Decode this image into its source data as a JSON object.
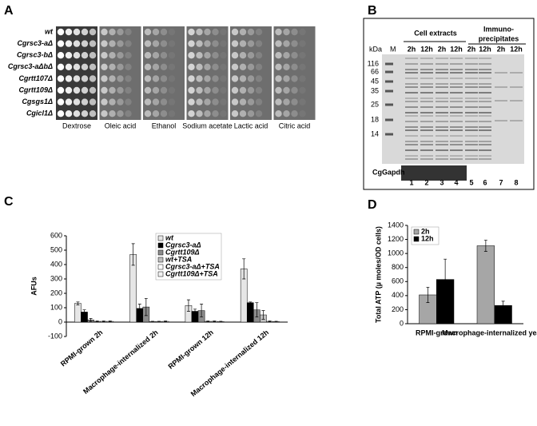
{
  "panels": {
    "a": "A",
    "b": "B",
    "c": "C",
    "d": "D"
  },
  "panel_a": {
    "strains": [
      "wt",
      "Cgrsc3-aΔ",
      "Cgrsc3-bΔ",
      "Cgrsc3-aΔbΔ",
      "Cgrtt107Δ",
      "Cgrtt109Δ",
      "Cgsgs1Δ",
      "Cgicl1Δ"
    ],
    "media": [
      "Dextrose",
      "Oleic acid",
      "Ethanol",
      "Sodium acetate",
      "Lactic acid",
      "Citric acid"
    ]
  },
  "panel_b": {
    "unit": "kDa",
    "marker": "M",
    "marker_sizes": [
      116,
      66,
      45,
      35,
      25,
      18,
      14
    ],
    "group_labels": [
      "Cell extracts",
      "Immuno-",
      "precipitates"
    ],
    "times": [
      "2h",
      "12h",
      "2h",
      "12h",
      "2h",
      "12h",
      "2h",
      "12h"
    ],
    "lanes": [
      1,
      2,
      3,
      4,
      5,
      6,
      7,
      8
    ],
    "loading_control": "CgGapdh"
  },
  "chart_data": [
    {
      "type": "bar",
      "y_label": "AFUs",
      "categories": [
        "RPMI-grown 2h",
        "Macrophage-internalized 2h",
        "RPMI-grown 12h",
        "Macrophage-internalized 12h"
      ],
      "series": [
        {
          "name": "wt",
          "color": "#e6e6e6",
          "values": [
            130,
            470,
            115,
            370
          ],
          "errors": [
            10,
            75,
            40,
            70
          ]
        },
        {
          "name": "Cgrsc3-aΔ",
          "color": "#000000",
          "values": [
            70,
            95,
            75,
            135
          ],
          "errors": [
            15,
            30,
            15,
            5
          ]
        },
        {
          "name": "Cgrtt109Δ",
          "color": "#8c8c8c",
          "values": [
            15,
            105,
            80,
            85
          ],
          "errors": [
            10,
            60,
            45,
            50
          ]
        },
        {
          "name": "wt+TSA",
          "color": "#bfbfbf",
          "values": [
            5,
            3,
            5,
            50
          ],
          "errors": [
            3,
            3,
            3,
            30
          ]
        },
        {
          "name": "Cgrsc3-aΔ+TSA",
          "color": "#ffffff",
          "values": [
            5,
            3,
            5,
            5
          ],
          "errors": [
            3,
            3,
            3,
            3
          ]
        },
        {
          "name": "Cgrtt109Δ+TSA",
          "color": "#f2f2f2",
          "values": [
            5,
            5,
            3,
            3
          ],
          "errors": [
            3,
            3,
            3,
            3
          ]
        }
      ],
      "ylim": [
        -100,
        600
      ],
      "yticks": [
        -100,
        0,
        100,
        200,
        300,
        400,
        500,
        600
      ],
      "legend": "top-center"
    },
    {
      "type": "bar",
      "y_label": "Total ATP (µ moles/OD cells)",
      "categories": [
        "RPMI-grown",
        "Macrophage-internalized yeast"
      ],
      "series": [
        {
          "name": "2h",
          "color": "#a6a6a6",
          "values": [
            410,
            1110
          ],
          "errors": [
            110,
            80
          ]
        },
        {
          "name": "12h",
          "color": "#000000",
          "values": [
            630,
            260
          ],
          "errors": [
            290,
            60
          ]
        }
      ],
      "ylim": [
        0,
        1400
      ],
      "yticks": [
        0,
        200,
        400,
        600,
        800,
        1000,
        1200,
        1400
      ],
      "legend": "top-left"
    }
  ]
}
